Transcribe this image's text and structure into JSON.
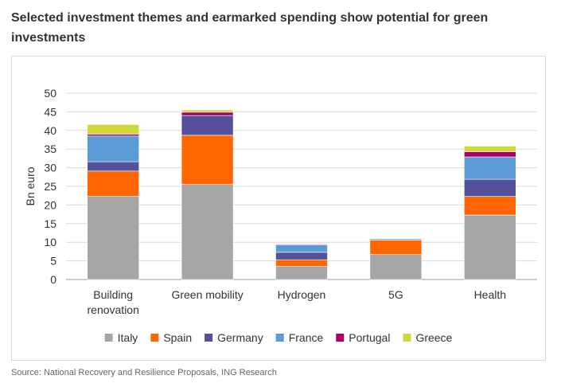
{
  "title": "Selected investment themes and earmarked spending show potential for green investments",
  "source": "Source: National Recovery and Resilience Proposals, ING Research",
  "chart_data": {
    "type": "bar",
    "stacked": true,
    "categories": [
      [
        "Building",
        "renovation"
      ],
      [
        "Green mobility"
      ],
      [
        "Hydrogen"
      ],
      [
        "5G"
      ],
      [
        "Health"
      ]
    ],
    "series": [
      {
        "name": "Italy",
        "color": "#a6a6a6",
        "values": [
          22.3,
          25.5,
          3.5,
          6.7,
          17.3
        ]
      },
      {
        "name": "Spain",
        "color": "#ff6600",
        "values": [
          6.8,
          13.2,
          1.8,
          3.9,
          5.0
        ]
      },
      {
        "name": "Germany",
        "color": "#525199",
        "values": [
          2.5,
          5.3,
          2.0,
          0.0,
          4.6
        ]
      },
      {
        "name": "France",
        "color": "#5b9bd5",
        "values": [
          6.9,
          0.0,
          2.0,
          0.3,
          6.0
        ]
      },
      {
        "name": "Portugal",
        "color": "#aa0066",
        "values": [
          0.5,
          0.9,
          0.2,
          0.0,
          1.4
        ]
      },
      {
        "name": "Greece",
        "color": "#d0d93c",
        "values": [
          2.6,
          0.6,
          0.0,
          0.0,
          1.5
        ]
      }
    ],
    "ylabel": "Bn euro",
    "xlabel": "",
    "ylim": [
      0,
      50
    ],
    "yticks": [
      0,
      5,
      10,
      15,
      20,
      25,
      30,
      35,
      40,
      45,
      50
    ],
    "grid": true,
    "legend_position": "bottom"
  }
}
